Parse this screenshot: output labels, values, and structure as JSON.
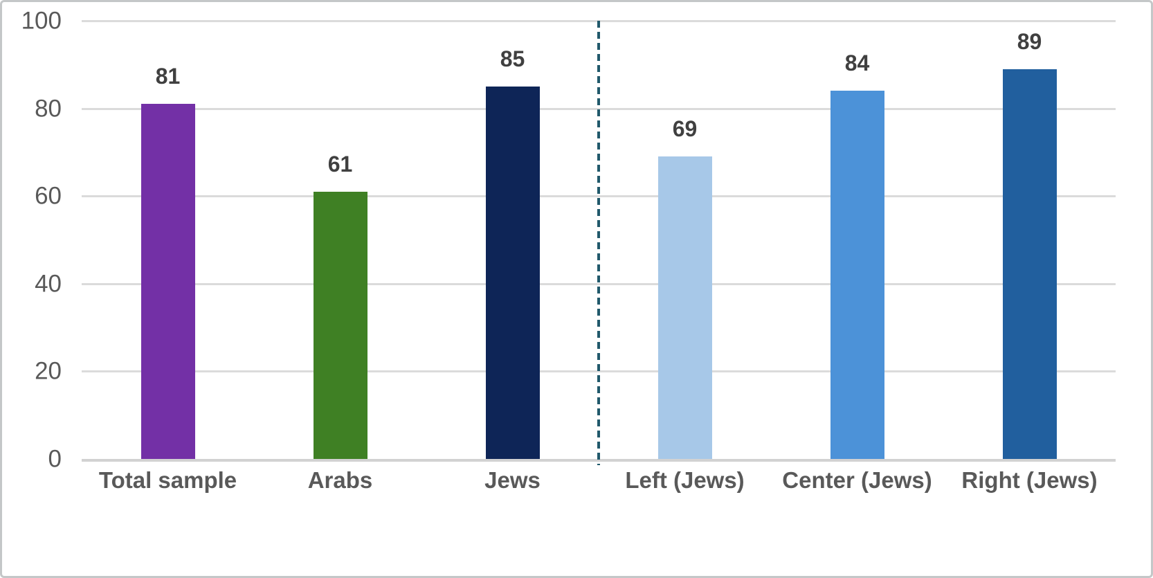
{
  "chart_data": {
    "type": "bar",
    "title": "",
    "categories": [
      "Total sample",
      "Arabs",
      "Jews",
      "Left (Jews)",
      "Center (Jews)",
      "Right (Jews)"
    ],
    "values": [
      81,
      61,
      85,
      69,
      84,
      89
    ],
    "value_labels": [
      "81",
      "61",
      "85",
      "69",
      "84",
      "89"
    ],
    "bar_colors": [
      "#7330A6",
      "#3F8024",
      "#0E2557",
      "#A7C8E8",
      "#4C92D8",
      "#215F9E"
    ],
    "xlabel": "",
    "ylabel": "",
    "ylim": [
      0,
      100
    ],
    "yticks": [
      0,
      20,
      40,
      60,
      80,
      100
    ],
    "ytick_labels": [
      "0",
      "20",
      "40",
      "60",
      "80",
      "100"
    ],
    "grid": "horizontal",
    "legend_position": "none",
    "divider": {
      "kind": "dashed-vertical-line",
      "after_category_index": 2,
      "color": "#21596B"
    }
  },
  "styles": {
    "background": "#FFFFFF",
    "frame_border_color": "#C4C7C8",
    "gridline_color": "#DBDBDB",
    "axis_line_color": "#D2D2D2",
    "tick_label_color": "#595959",
    "value_label_color": "#404040",
    "category_label_color": "#595959"
  }
}
